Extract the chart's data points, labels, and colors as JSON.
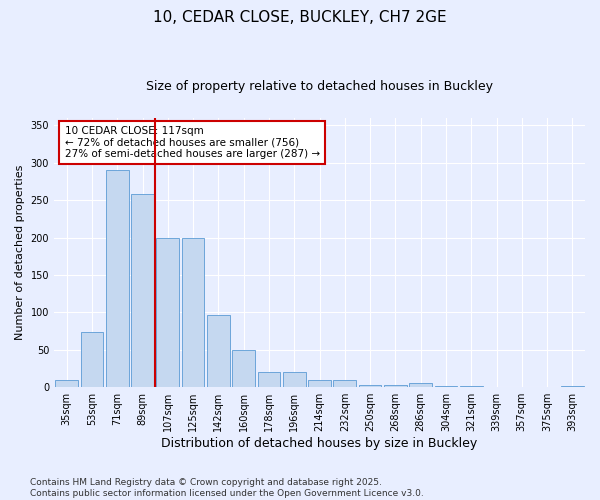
{
  "title": "10, CEDAR CLOSE, BUCKLEY, CH7 2GE",
  "subtitle": "Size of property relative to detached houses in Buckley",
  "xlabel": "Distribution of detached houses by size in Buckley",
  "ylabel": "Number of detached properties",
  "categories": [
    "35sqm",
    "53sqm",
    "71sqm",
    "89sqm",
    "107sqm",
    "125sqm",
    "142sqm",
    "160sqm",
    "178sqm",
    "196sqm",
    "214sqm",
    "232sqm",
    "250sqm",
    "268sqm",
    "286sqm",
    "304sqm",
    "321sqm",
    "339sqm",
    "357sqm",
    "375sqm",
    "393sqm"
  ],
  "values": [
    10,
    74,
    290,
    258,
    200,
    200,
    96,
    50,
    20,
    20,
    9,
    9,
    3,
    3,
    5,
    1,
    1,
    0,
    0,
    0,
    1
  ],
  "bar_color": "#c5d8f0",
  "bar_edge_color": "#5b9bd5",
  "vline_x_index": 4,
  "vline_color": "#cc0000",
  "annotation_text": "10 CEDAR CLOSE: 117sqm\n← 72% of detached houses are smaller (756)\n27% of semi-detached houses are larger (287) →",
  "annotation_box_facecolor": "#ffffff",
  "annotation_box_edgecolor": "#cc0000",
  "ylim": [
    0,
    360
  ],
  "yticks": [
    0,
    50,
    100,
    150,
    200,
    250,
    300,
    350
  ],
  "plot_bg_color": "#e8eeff",
  "grid_color": "#ffffff",
  "footer": "Contains HM Land Registry data © Crown copyright and database right 2025.\nContains public sector information licensed under the Open Government Licence v3.0.",
  "title_fontsize": 11,
  "subtitle_fontsize": 9,
  "xlabel_fontsize": 9,
  "ylabel_fontsize": 8,
  "tick_fontsize": 7,
  "annotation_fontsize": 7.5,
  "footer_fontsize": 6.5
}
